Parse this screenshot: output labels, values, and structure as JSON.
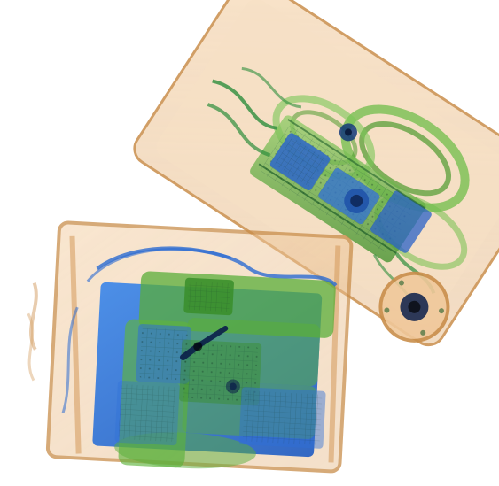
{
  "image": {
    "kind": "x-ray baggage scan",
    "background_color": "#ffffff",
    "palette": {
      "organic": "#d9a060",
      "organic_light": "#f0c89a",
      "mixed": "#4f9a2f",
      "mixed_light": "#7bc257",
      "inorganic": "#2f6fd6",
      "inorganic_light": "#4b90e8",
      "dense": "#143a7a",
      "wire": "#1f5f2a"
    },
    "objects": [
      {
        "label": "box-right",
        "materials": [
          "organic",
          "mixed",
          "inorganic"
        ],
        "contents": [
          "circuit-board",
          "coiled-cables",
          "round-object"
        ]
      },
      {
        "label": "box-left",
        "materials": [
          "organic",
          "mixed",
          "inorganic"
        ],
        "contents": [
          "circuit-boards",
          "cable-loop",
          "dense-component"
        ]
      }
    ]
  }
}
